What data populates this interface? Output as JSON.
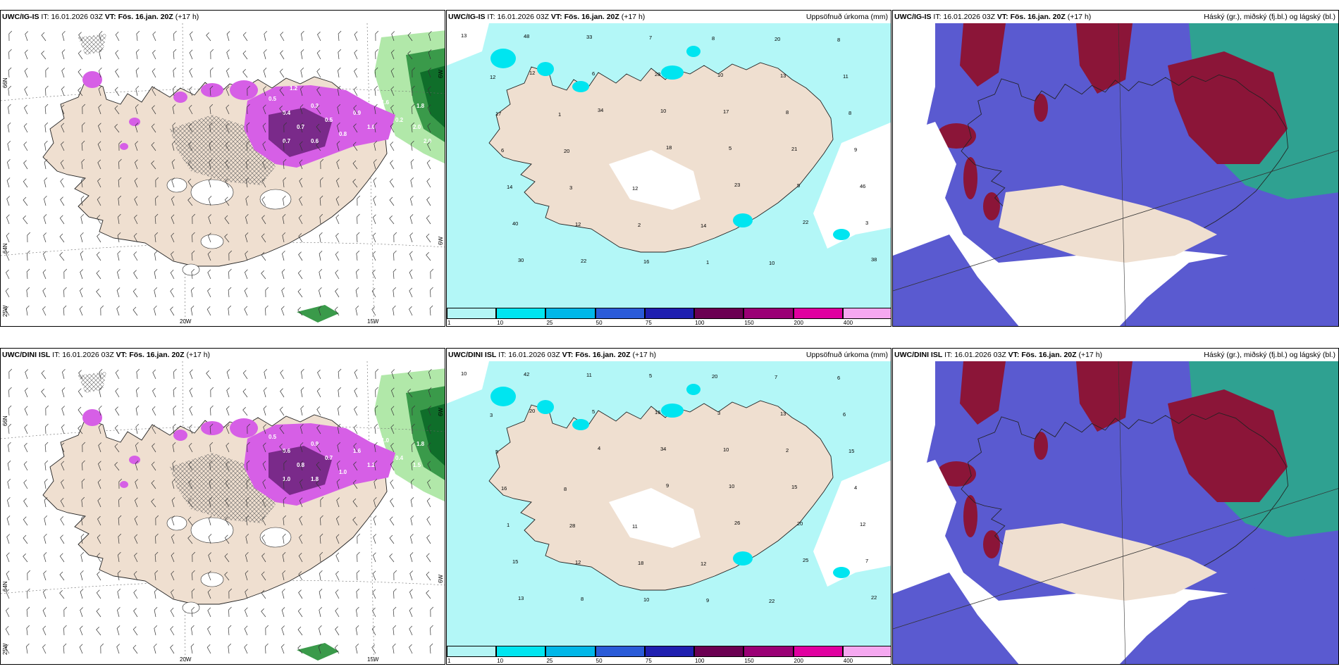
{
  "rows": [
    {
      "model": "UWC/IG-IS",
      "it_label": "IT:",
      "it_value": "16.01.2026 03Z",
      "vt_label": "VT:",
      "vt_value": "Fös. 16.jan. 20Z",
      "lead": "(+17 h)",
      "precip_title": "Uppsöfnuð úrkoma (mm)",
      "cloud_title": "Háský (gr.), miðský (fj.bl.) og lágský (bl.)",
      "precip_labels": [
        "13",
        "12",
        "34",
        "18",
        "23",
        "22",
        "38",
        "48",
        "6",
        "10",
        "5",
        "5",
        "3",
        "30",
        "33",
        "28",
        "17",
        "21",
        "46",
        "40",
        "22",
        "7",
        "10",
        "8",
        "9",
        "14",
        "12",
        "16",
        "8",
        "13",
        "8",
        "6",
        "3",
        "2",
        "1",
        "20",
        "11",
        "17",
        "20",
        "12",
        "14",
        "10",
        "8",
        "12",
        "1"
      ],
      "snow_labels": [
        "0.5",
        "0.4",
        "0.7",
        "0.3",
        "0.5",
        "0.8",
        "0.9",
        "1.0",
        "0.6",
        "0.2",
        "0.7",
        "1.6",
        "2.0",
        "1.8",
        "2.0",
        "1.2"
      ]
    },
    {
      "model": "UWC/DINI ISL",
      "it_label": "IT:",
      "it_value": "16.01.2026 03Z",
      "vt_label": "VT:",
      "vt_value": "Fös. 16.jan. 20Z",
      "lead": "(+17 h)",
      "precip_title": "Uppsöfnuð úrkoma (mm)",
      "cloud_title": "Háský (gr.), miðský (fj.bl.) og lágský (bl.)",
      "precip_labels": [
        "10",
        "20",
        "4",
        "9",
        "26",
        "25",
        "22",
        "42",
        "5",
        "34",
        "10",
        "20",
        "7",
        "13",
        "11",
        "16",
        "10",
        "15",
        "12",
        "15",
        "8",
        "5",
        "3",
        "2",
        "4",
        "1",
        "12",
        "10",
        "20",
        "13",
        "15",
        "16",
        "28",
        "18",
        "9",
        "7",
        "6",
        "5",
        "8",
        "11",
        "12",
        "22",
        "6",
        "3"
      ],
      "snow_labels": [
        "0.5",
        "0.6",
        "0.8",
        "0.9",
        "0.7",
        "1.0",
        "1.6",
        "1.2",
        "1.8",
        "0.4",
        "1.0",
        "1.0",
        "1.5",
        "1.8"
      ]
    }
  ],
  "map_axes": {
    "lon_labels": [
      "20W",
      "15W"
    ],
    "lat_labels_left": [
      "66N",
      "64N",
      "25W"
    ],
    "lat_labels_right": [
      "6W",
      "6W"
    ]
  },
  "legend": {
    "ticks": [
      "1",
      "10",
      "25",
      "50",
      "75",
      "100",
      "150",
      "200",
      "400"
    ],
    "colors": [
      "#b3f5f5",
      "#00e5f0",
      "#00b7e8",
      "#2a5bd8",
      "#1f1fb0",
      "#6b0052",
      "#9a0075",
      "#e000a0",
      "#f5a8f0"
    ]
  },
  "colors": {
    "land": "#efdfd0",
    "ocean_precip": "#b3f7f7",
    "snow_magenta": "#d65fe6",
    "snow_dark": "#7a2a8a",
    "green_light": "#a8e6a0",
    "green_dark": "#0f6e2a",
    "cloud_high_blue": "#5a5ad0",
    "cloud_mid_red": "#8b1538",
    "cloud_low_teal": "#2aa88a"
  }
}
